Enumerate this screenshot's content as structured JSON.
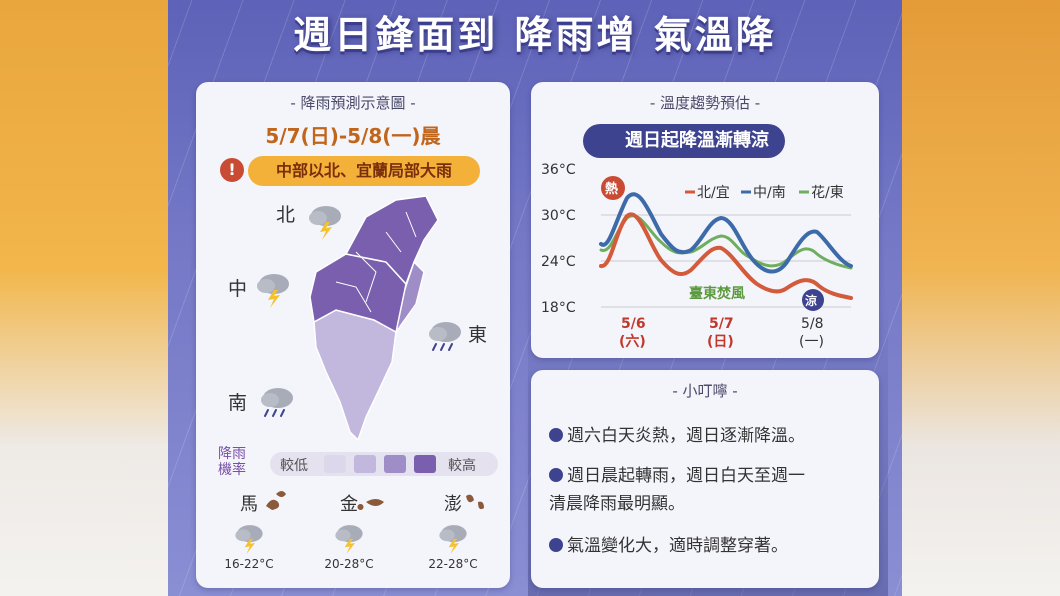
{
  "title": "週日鋒面到 降雨增 氣溫降",
  "rain_panel": {
    "heading": "- 降雨預測示意圖 -",
    "date_range": "5/7(日)-5/8(一)晨",
    "alert_icon": "!",
    "alert_text": "中部以北、宜蘭局部大雨",
    "regions": {
      "north": "北",
      "central": "中",
      "east": "東",
      "south": "南"
    },
    "legend": {
      "label_line1": "降雨",
      "label_line2": "機率",
      "low": "較低",
      "high": "較高",
      "colors": [
        "#dcd7ea",
        "#c2b7dc",
        "#9f8dc8",
        "#7a5fae"
      ]
    },
    "islands": [
      {
        "name": "馬",
        "range": "16-22°C"
      },
      {
        "name": "金",
        "range": "20-28°C"
      },
      {
        "name": "澎",
        "range": "22-28°C"
      }
    ]
  },
  "temp_panel": {
    "heading": "- 溫度趨勢預估 -",
    "badge_icon": "!",
    "badge_text": "週日起降溫漸轉涼",
    "y_ticks": [
      "36°C",
      "30°C",
      "24°C",
      "18°C"
    ],
    "legend": {
      "north": "北/宜",
      "central": "中/南",
      "east": "花/東"
    },
    "hot_marker": "熱",
    "cool_marker": "涼",
    "wind_note": "臺東焚風",
    "x_labels": [
      {
        "date": "5/6",
        "day": "(六)",
        "color": "#c0392b"
      },
      {
        "date": "5/7",
        "day": "(日)",
        "color": "#c0392b"
      },
      {
        "date": "5/8",
        "day": "(一)",
        "color": "#333333"
      }
    ],
    "colors": {
      "north": "#d35a3a",
      "central": "#3d6aa8",
      "east": "#6fae5e"
    }
  },
  "tips_panel": {
    "heading": "- 小叮嚀 -",
    "tips": [
      {
        "line1": "週六白天炎熱，週日逐漸降溫。",
        "line2": ""
      },
      {
        "line1": "週日晨起轉雨，週日白天至週一",
        "line2": "清晨降雨最明顯。"
      },
      {
        "line1": "氣溫變化大，適時調整穿著。",
        "line2": ""
      }
    ]
  }
}
